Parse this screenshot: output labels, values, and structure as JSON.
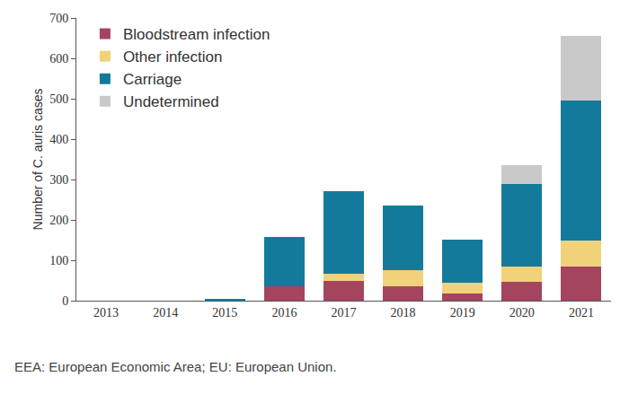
{
  "chart_data": {
    "type": "bar",
    "stacked": true,
    "y_label": "Number of C. auris cases",
    "annotations": [
      "EEA: European Economic Area; EU: European Union."
    ],
    "categories": [
      "2013",
      "2014",
      "2015",
      "2016",
      "2017",
      "2018",
      "2019",
      "2020",
      "2021"
    ],
    "series": [
      {
        "name": "Bloodstream infection",
        "color": "#a4445f",
        "values": [
          0,
          0,
          0,
          35,
          50,
          35,
          17,
          47,
          85
        ]
      },
      {
        "name": "Other infection",
        "color": "#f0d27a",
        "values": [
          0,
          0,
          0,
          0,
          17,
          40,
          28,
          38,
          65
        ]
      },
      {
        "name": "Carriage",
        "color": "#147a9c",
        "values": [
          0,
          0,
          4,
          123,
          205,
          160,
          107,
          205,
          345
        ]
      },
      {
        "name": "Undetermined",
        "color": "#c9c9c9",
        "values": [
          0,
          0,
          0,
          0,
          0,
          0,
          0,
          45,
          160
        ]
      }
    ],
    "ylim": [
      0,
      700
    ],
    "yticks": [
      0,
      100,
      200,
      300,
      400,
      500,
      600,
      700
    ],
    "grid": false,
    "legend": "upper left"
  }
}
